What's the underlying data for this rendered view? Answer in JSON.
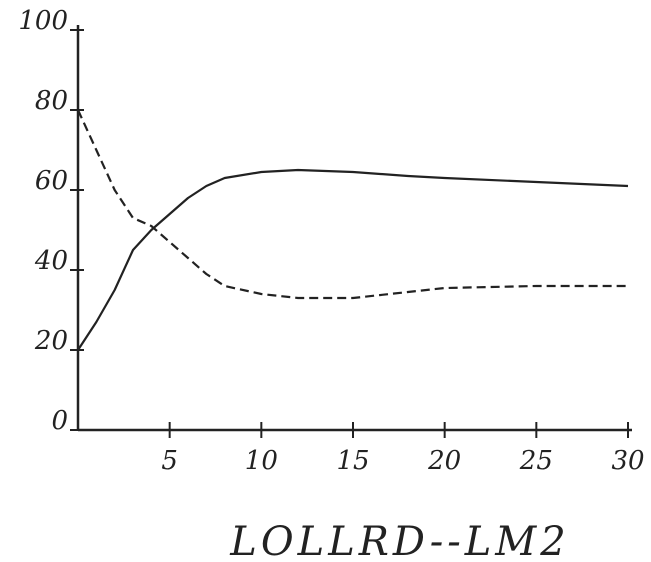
{
  "chart_data": {
    "type": "line",
    "x_label": "LOLLRD--LM2",
    "x": [
      0,
      1,
      2,
      3,
      4,
      5,
      6,
      7,
      8,
      10,
      12,
      15,
      18,
      20,
      25,
      30
    ],
    "series": [
      {
        "color": "#222222",
        "dash": false,
        "values": [
          20,
          27,
          35,
          45,
          50,
          54,
          58,
          61,
          63,
          64.5,
          65,
          64.5,
          63.5,
          63,
          62,
          61
        ]
      },
      {
        "color": "#222222",
        "dash": true,
        "values": [
          80,
          70,
          60,
          53,
          51,
          47,
          43,
          39,
          36,
          34,
          33,
          33,
          34.5,
          35.5,
          36,
          36
        ]
      }
    ],
    "xlim": [
      0,
      30
    ],
    "xticks": [
      5,
      10,
      15,
      20,
      25,
      30
    ],
    "ylim": [
      0,
      100
    ],
    "yticks": [
      0,
      20,
      40,
      60,
      80,
      100
    ]
  }
}
